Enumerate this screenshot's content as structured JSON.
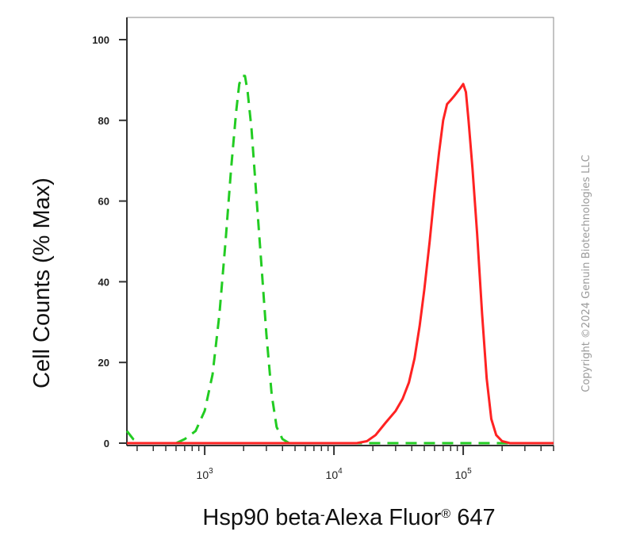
{
  "chart_data": {
    "type": "line",
    "xlabel_main": "Hsp90 beta",
    "xlabel_sep": "-",
    "xlabel_tail": "Alexa Fluor",
    "xlabel_reg": "®",
    "xlabel_end": " 647",
    "ylabel": "Cell Counts (% Max)",
    "x_scale": "log",
    "xlim": [
      250,
      500000
    ],
    "ylim": [
      0,
      100
    ],
    "y_ticks": [
      0,
      20,
      40,
      60,
      80,
      100
    ],
    "x_tick_labels": [
      {
        "value": 1000,
        "base": "10",
        "exp": "3"
      },
      {
        "value": 10000,
        "base": "10",
        "exp": "4"
      },
      {
        "value": 100000,
        "base": "10",
        "exp": "5"
      }
    ],
    "grid": false,
    "series": [
      {
        "color": "#22cc22",
        "style": "dashed",
        "points": [
          [
            250,
            3
          ],
          [
            280,
            1
          ],
          [
            320,
            0
          ],
          [
            600,
            0
          ],
          [
            700,
            1
          ],
          [
            850,
            3
          ],
          [
            1000,
            8
          ],
          [
            1150,
            17
          ],
          [
            1300,
            32
          ],
          [
            1450,
            50
          ],
          [
            1600,
            68
          ],
          [
            1750,
            82
          ],
          [
            1850,
            89
          ],
          [
            1950,
            91
          ],
          [
            2050,
            91
          ],
          [
            2150,
            87
          ],
          [
            2300,
            78
          ],
          [
            2500,
            62
          ],
          [
            2750,
            44
          ],
          [
            3000,
            27
          ],
          [
            3300,
            12
          ],
          [
            3600,
            4
          ],
          [
            4000,
            1
          ],
          [
            4500,
            0
          ],
          [
            500000,
            0
          ]
        ]
      },
      {
        "color": "#ff2222",
        "style": "solid",
        "points": [
          [
            250,
            0
          ],
          [
            15000,
            0
          ],
          [
            18000,
            0.5
          ],
          [
            21000,
            2
          ],
          [
            25000,
            5
          ],
          [
            30000,
            8
          ],
          [
            34000,
            11
          ],
          [
            38000,
            15
          ],
          [
            42000,
            21
          ],
          [
            46000,
            29
          ],
          [
            50000,
            38
          ],
          [
            55000,
            50
          ],
          [
            60000,
            62
          ],
          [
            65000,
            72
          ],
          [
            70000,
            80
          ],
          [
            75000,
            84
          ],
          [
            80000,
            85
          ],
          [
            85000,
            86
          ],
          [
            90000,
            87
          ],
          [
            95000,
            88
          ],
          [
            100000,
            89
          ],
          [
            105000,
            87
          ],
          [
            110000,
            80
          ],
          [
            118000,
            68
          ],
          [
            128000,
            52
          ],
          [
            140000,
            32
          ],
          [
            152000,
            16
          ],
          [
            165000,
            6
          ],
          [
            180000,
            2
          ],
          [
            200000,
            0.5
          ],
          [
            230000,
            0
          ],
          [
            500000,
            0
          ]
        ]
      }
    ]
  },
  "watermark": "Copyright ©2024 Genuin Biotechnologies LLC"
}
